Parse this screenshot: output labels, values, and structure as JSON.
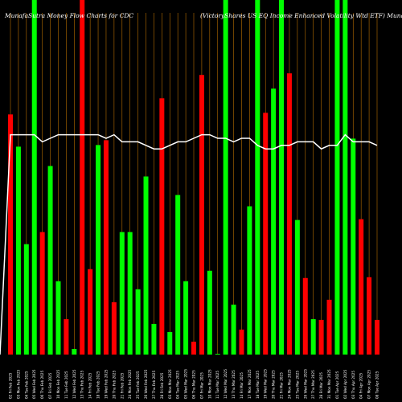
{
  "chart_data": {
    "type": "bar",
    "title_left": "MunafaSutra  Money Flow  Charts for CDC",
    "title_right": "(VictoryShares US EQ Income    Enhanced Volatility Wtd ETF) MunafaSutra.com",
    "categories": [
      "02 Fri Feb 2025",
      "03 Mon Feb 2025",
      "04 Tue Feb 2025",
      "05 Wed Feb 2025",
      "06 Thu Feb 2025",
      "07 Fri Feb 2025",
      "10 Mon Feb 2025",
      "11 Tue Feb 2025",
      "12 Wed Feb 2025",
      "13 Thu Feb 2025",
      "14 Fri Feb 2025",
      "18 Tue Feb 2025",
      "19 Wed Feb 2025",
      "20 Thu Feb 2025",
      "21 Fri Feb 2025",
      "24 Mon Feb 2025",
      "25 Tue Feb 2025",
      "26 Wed Feb 2025",
      "27 Thu Feb 2025",
      "28 Fri Feb 2025",
      "03 Mon Mar 2025",
      "04 Tue Mar 2025",
      "05 Wed Mar 2025",
      "06 Thu Mar 2025",
      "07 Fri Mar 2025",
      "10 Mon Mar 2025",
      "11 Tue Mar 2025",
      "12 Wed Mar 2025",
      "13 Thu Mar 2025",
      "14 Fri Mar 2025",
      "17 Mon Mar 2025",
      "18 Tue Mar 2025",
      "19 Wed Mar 2025",
      "20 Thu Mar 2025",
      "21 Fri Mar 2025",
      "24 Mon Mar 2025",
      "25 Tue Mar 2025",
      "26 Wed Mar 2025",
      "27 Thu Mar 2025",
      "28 Fri Mar 2025",
      "31 Mon Mar 2025",
      "01 Tue Apr 2025",
      "02 Wed Apr 2025",
      "03 Thu Apr 2025",
      "04 Fri Apr 2025",
      "07 Mon Apr 2025",
      "08 Tue Apr 2025"
    ],
    "values": [
      298,
      258,
      137,
      440,
      152,
      234,
      91,
      44,
      7,
      440,
      106,
      260,
      266,
      65,
      152,
      152,
      81,
      221,
      38,
      318,
      28,
      198,
      91,
      16,
      347,
      104,
      1,
      440,
      62,
      31,
      184,
      440,
      300,
      330,
      440,
      349,
      167,
      95,
      44,
      43,
      68,
      440,
      441,
      268,
      168,
      96,
      43
    ],
    "colors": [
      "red",
      "green",
      "green",
      "green",
      "red",
      "green",
      "green",
      "red",
      "green",
      "red",
      "red",
      "green",
      "red",
      "red",
      "green",
      "green",
      "green",
      "green",
      "green",
      "red",
      "green",
      "green",
      "green",
      "red",
      "red",
      "green",
      "green",
      "green",
      "green",
      "red",
      "green",
      "green",
      "red",
      "green",
      "green",
      "red",
      "green",
      "red",
      "green",
      "red",
      "red",
      "green",
      "green",
      "green",
      "red",
      "red",
      "red"
    ],
    "price_line": [
      62,
      62,
      62,
      62,
      60,
      61,
      62,
      62,
      62,
      62,
      62,
      62,
      61,
      62,
      60,
      60,
      60,
      59,
      58,
      58,
      59,
      60,
      60,
      61,
      62,
      62,
      61,
      61,
      60,
      61,
      61,
      59,
      58,
      58,
      59,
      59,
      60,
      60,
      60,
      58,
      59,
      59,
      62,
      60,
      60,
      60,
      59
    ],
    "ylim": [
      0,
      440
    ],
    "grid": "vertical",
    "series_colors": {
      "green": "#00ff00",
      "red": "#ff0000",
      "line": "#ffffff",
      "grid": "#b86e00"
    }
  }
}
